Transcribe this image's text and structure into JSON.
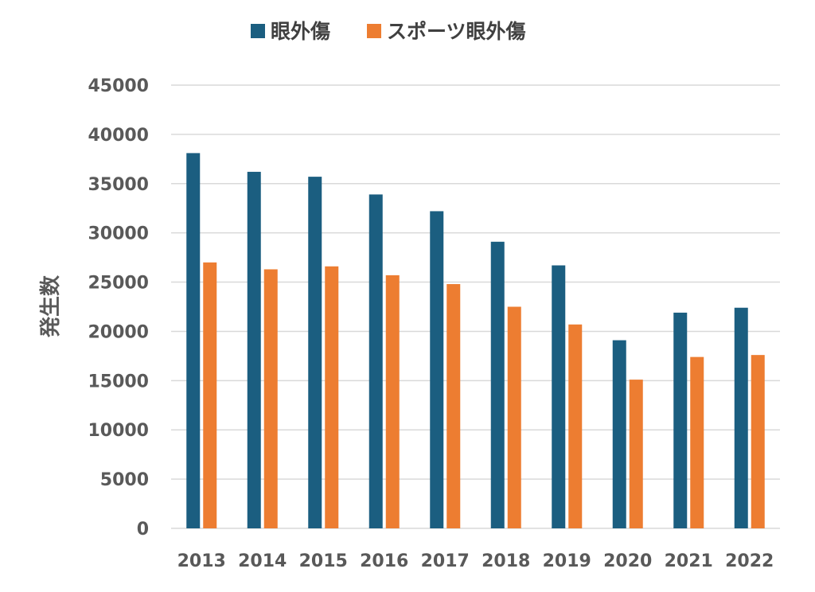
{
  "chart_data": {
    "type": "bar",
    "title": "",
    "xlabel": "",
    "ylabel": "発生数",
    "ylim": [
      0,
      45000
    ],
    "y_ticks": [
      0,
      5000,
      10000,
      15000,
      20000,
      25000,
      30000,
      35000,
      40000,
      45000
    ],
    "grid": true,
    "legend_position": "top",
    "categories": [
      "2013",
      "2014",
      "2015",
      "2016",
      "2017",
      "2018",
      "2019",
      "2020",
      "2021",
      "2022"
    ],
    "series": [
      {
        "name": "眼外傷",
        "color": "#1b5e80",
        "values": [
          38100,
          36200,
          35700,
          33900,
          32200,
          29100,
          26700,
          19100,
          21900,
          22400
        ]
      },
      {
        "name": "スポーツ眼外傷",
        "color": "#ed7d31",
        "values": [
          27000,
          26300,
          26600,
          25700,
          24800,
          22500,
          20700,
          15100,
          17400,
          17600
        ]
      }
    ]
  }
}
